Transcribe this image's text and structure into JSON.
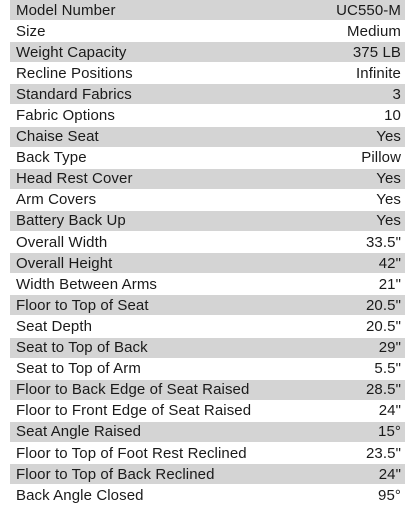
{
  "specs": [
    {
      "label": "Model Number",
      "value": "UC550-M"
    },
    {
      "label": "Size",
      "value": "Medium"
    },
    {
      "label": "Weight Capacity",
      "value": "375 LB"
    },
    {
      "label": "Recline Positions",
      "value": "Infinite"
    },
    {
      "label": "Standard Fabrics",
      "value": "3"
    },
    {
      "label": "Fabric Options",
      "value": "10"
    },
    {
      "label": "Chaise Seat",
      "value": "Yes"
    },
    {
      "label": "Back Type",
      "value": "Pillow"
    },
    {
      "label": "Head Rest Cover",
      "value": "Yes"
    },
    {
      "label": "Arm Covers",
      "value": "Yes"
    },
    {
      "label": "Battery Back Up",
      "value": "Yes"
    },
    {
      "label": "Overall Width",
      "value": "33.5\""
    },
    {
      "label": "Overall Height",
      "value": "42\""
    },
    {
      "label": "Width Between Arms",
      "value": "21\""
    },
    {
      "label": "Floor to Top of Seat",
      "value": "20.5\""
    },
    {
      "label": "Seat Depth",
      "value": "20.5\""
    },
    {
      "label": "Seat to Top of Back",
      "value": "29\""
    },
    {
      "label": "Seat to Top of Arm",
      "value": "5.5\""
    },
    {
      "label": "Floor to Back Edge of Seat Raised",
      "value": "28.5\""
    },
    {
      "label": "Floor to Front Edge of Seat Raised",
      "value": "24\""
    },
    {
      "label": "Seat Angle Raised",
      "value": "15°"
    },
    {
      "label": "Floor to Top of Foot Rest Reclined",
      "value": "23.5\""
    },
    {
      "label": "Floor to Top of Back Reclined",
      "value": "24\""
    },
    {
      "label": "Back Angle Closed",
      "value": "95°"
    }
  ],
  "colors": {
    "shaded_row": "#d4d4d4",
    "plain_row": "#ffffff",
    "text": "#1a1a1a"
  }
}
